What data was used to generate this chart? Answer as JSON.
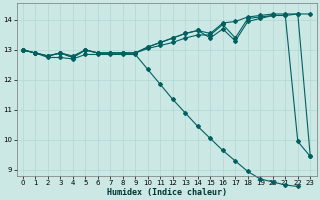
{
  "xlabel": "Humidex (Indice chaleur)",
  "background_color": "#cbe8e4",
  "grid_color": "#b0d8d4",
  "line_color": "#006060",
  "xlim": [
    -0.5,
    23.5
  ],
  "ylim": [
    8.8,
    14.55
  ],
  "yticks": [
    9,
    10,
    11,
    12,
    13,
    14
  ],
  "xticks": [
    0,
    1,
    2,
    3,
    4,
    5,
    6,
    7,
    8,
    9,
    10,
    11,
    12,
    13,
    14,
    15,
    16,
    17,
    18,
    19,
    20,
    21,
    22,
    23
  ],
  "series": {
    "line1_x": [
      0,
      1,
      2,
      3,
      4,
      5,
      6,
      7,
      8,
      9,
      10,
      11,
      12,
      13,
      14,
      15,
      16,
      17,
      18,
      19,
      20,
      21,
      22,
      23
    ],
    "line1_y": [
      13.0,
      12.9,
      12.8,
      12.9,
      12.8,
      13.0,
      12.9,
      12.9,
      12.9,
      12.9,
      13.05,
      13.15,
      13.25,
      13.4,
      13.5,
      13.5,
      13.85,
      13.4,
      14.05,
      14.1,
      14.15,
      14.15,
      14.2,
      14.2
    ],
    "line2_x": [
      0,
      1,
      2,
      3,
      4,
      5,
      6,
      7,
      8,
      9,
      10,
      11,
      12,
      13,
      14,
      15,
      16,
      17,
      18,
      19,
      20,
      21,
      22,
      23
    ],
    "line2_y": [
      13.0,
      12.9,
      12.8,
      12.9,
      12.75,
      13.0,
      12.9,
      12.9,
      12.9,
      12.9,
      13.1,
      13.25,
      13.4,
      13.55,
      13.65,
      13.55,
      13.9,
      13.95,
      14.1,
      14.15,
      14.2,
      14.2,
      14.2,
      9.45
    ],
    "line3_x": [
      0,
      1,
      2,
      3,
      4,
      5,
      6,
      7,
      8,
      9,
      10,
      11,
      12,
      13,
      14,
      15,
      16,
      17,
      18,
      19,
      20,
      21,
      22,
      23
    ],
    "line3_y": [
      13.0,
      12.9,
      12.8,
      12.9,
      12.75,
      13.0,
      12.9,
      12.9,
      12.9,
      12.9,
      13.1,
      13.25,
      13.4,
      13.55,
      13.65,
      13.4,
      13.7,
      13.3,
      13.95,
      14.05,
      14.15,
      14.15,
      9.95,
      9.45
    ],
    "line4_x": [
      0,
      1,
      2,
      3,
      4,
      5,
      6,
      7,
      8,
      9,
      10,
      11,
      12,
      13,
      14,
      15,
      16,
      17,
      18,
      19,
      20,
      21,
      22
    ],
    "line4_y": [
      13.0,
      12.9,
      12.75,
      12.75,
      12.7,
      12.85,
      12.85,
      12.85,
      12.85,
      12.85,
      12.35,
      11.85,
      11.35,
      10.9,
      10.45,
      10.05,
      9.65,
      9.3,
      8.95,
      8.7,
      8.6,
      8.5,
      8.45
    ]
  }
}
